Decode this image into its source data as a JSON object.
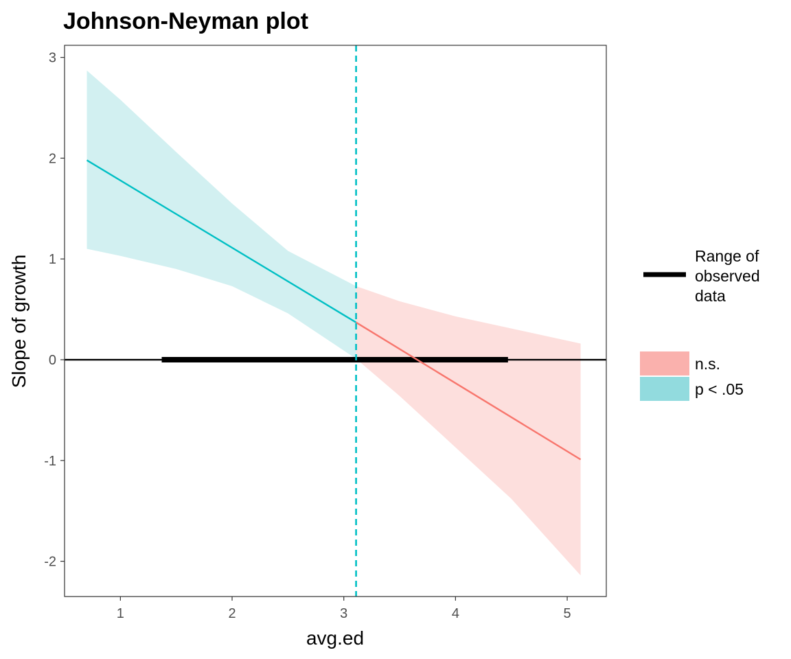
{
  "chart_data": {
    "type": "line",
    "title": "Johnson-Neyman plot",
    "xlabel": "avg.ed",
    "ylabel": "Slope of growth",
    "xlim": [
      0.5,
      5.35
    ],
    "ylim": [
      -2.35,
      3.12
    ],
    "xticks": [
      "1",
      "2",
      "3",
      "4",
      "5"
    ],
    "yticks": [
      "3",
      "2",
      "1",
      "0",
      "-1",
      "-2"
    ],
    "grid": false,
    "legend_placement": "right",
    "jn_boundary": 3.11,
    "reference_line_y": 0,
    "observed_range": [
      1.37,
      4.47
    ],
    "colors": {
      "significant": "#00BFC4",
      "not_significant": "#F8766D",
      "significant_fill": "#d2f0f1",
      "not_significant_fill": "#fddfdd",
      "legend_significant": "#92dbde",
      "legend_not_significant": "#fab1ad"
    },
    "series": [
      {
        "name": "p < .05",
        "x": [
          0.7,
          3.11
        ],
        "y": [
          1.98,
          0.37
        ]
      },
      {
        "name": "n.s.",
        "x": [
          3.11,
          5.12
        ],
        "y": [
          0.37,
          -0.99
        ]
      }
    ],
    "confidence_band": {
      "x": [
        0.7,
        1.0,
        1.5,
        2.0,
        2.5,
        3.11,
        3.5,
        4.0,
        4.5,
        5.12
      ],
      "upper": [
        2.87,
        2.58,
        2.06,
        1.55,
        1.08,
        0.73,
        0.58,
        0.43,
        0.31,
        0.16
      ],
      "lower": [
        1.1,
        1.03,
        0.9,
        0.73,
        0.46,
        0.01,
        -0.36,
        -0.87,
        -1.38,
        -2.14
      ]
    },
    "legend": {
      "line_label_lines": [
        "Range of",
        "observed",
        "data"
      ],
      "fill_items": [
        {
          "label": "n.s.",
          "key": "legend_not_significant"
        },
        {
          "label": "p < .05",
          "key": "legend_significant"
        }
      ]
    }
  }
}
